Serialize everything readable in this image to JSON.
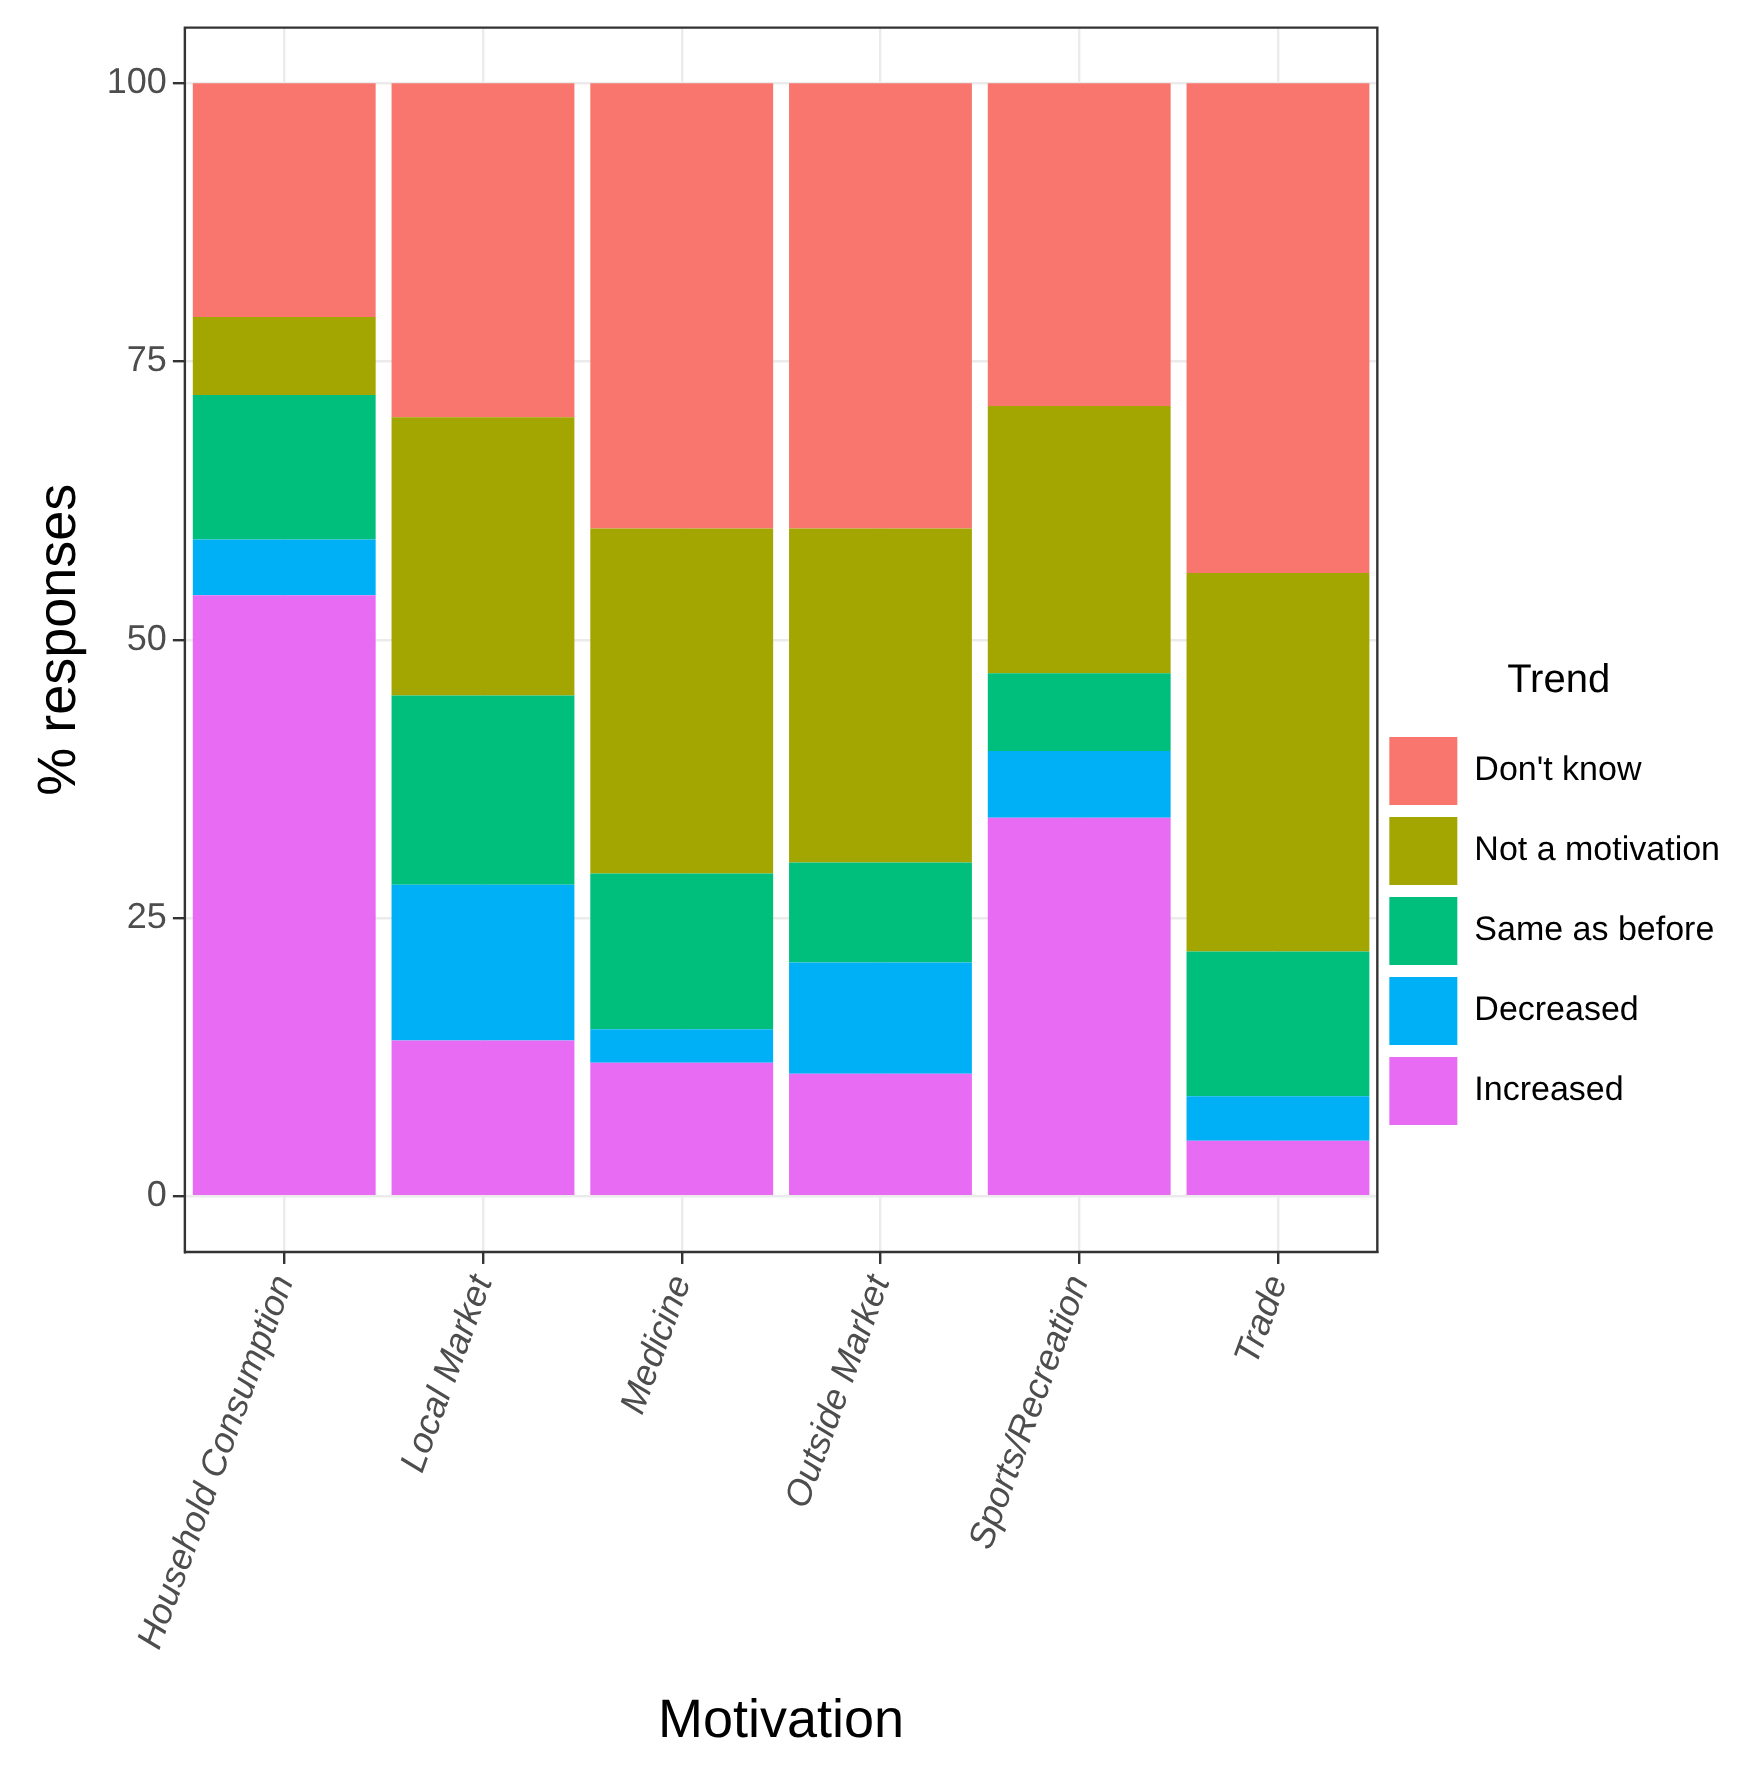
{
  "chart_data": {
    "type": "bar",
    "stacked": true,
    "xlabel": "Motivation",
    "ylabel": "% responses",
    "legend_title": "Trend",
    "legend": "right",
    "grid": true,
    "categories": [
      "Household Consumption",
      "Local Market",
      "Medicine",
      "Outside Market",
      "Sports/Recreation",
      "Trade"
    ],
    "ylim": [
      -5,
      105
    ],
    "yticks": [
      0,
      25,
      50,
      75,
      100
    ],
    "series": [
      {
        "name": "Increased",
        "color": "#e76bf3",
        "values": [
          54,
          14,
          12,
          11,
          34,
          5
        ]
      },
      {
        "name": "Decreased",
        "color": "#00b0f6",
        "values": [
          5,
          14,
          3,
          10,
          6,
          4
        ]
      },
      {
        "name": "Same as before",
        "color": "#00bf7d",
        "values": [
          13,
          17,
          14,
          9,
          7,
          13
        ]
      },
      {
        "name": "Not a motivation",
        "color": "#a3a500",
        "values": [
          7,
          25,
          31,
          30,
          24,
          34
        ]
      },
      {
        "name": "Don't know",
        "color": "#f8766d",
        "values": [
          21,
          30,
          40,
          40,
          29,
          44
        ]
      }
    ]
  }
}
